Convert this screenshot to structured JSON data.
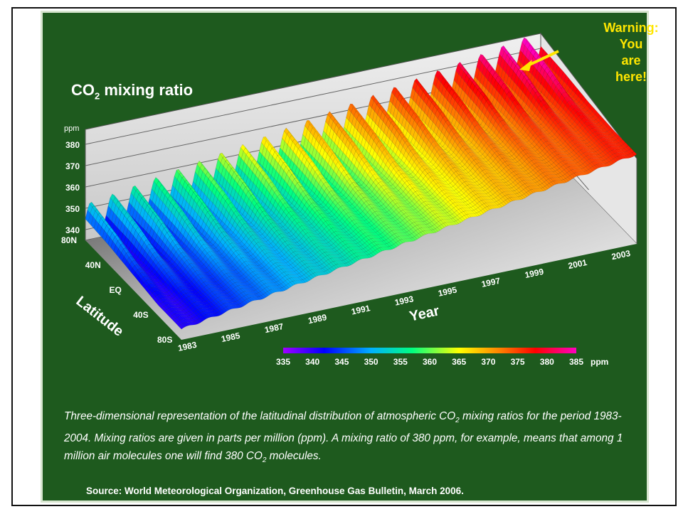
{
  "title_prefix": "CO",
  "title_sub": "2",
  "title_suffix": " mixing ratio",
  "warning_lines": [
    "Warning:",
    "You",
    "are",
    "here!"
  ],
  "caption": {
    "part1": "Three-dimensional representation of the latitudinal distribution of atmospheric CO",
    "sub1": "2",
    "part2": " mixing ratios for the period 1983-2004. Mixing ratios are given in parts per million (ppm).  A mixing ratio of 380 ppm, for example, means that among 1 million air molecules one will find 380 CO",
    "sub2": "2",
    "part3": " molecules."
  },
  "source": "Source: World Meteorological Organization, Greenhouse Gas Bulletin, March 2006.",
  "chart_data": {
    "type": "surface",
    "zlabel": "ppm",
    "xlabel": "Year",
    "ylabel": "Latitude",
    "z_ticks": [
      "340",
      "350",
      "360",
      "370",
      "380"
    ],
    "zlim": [
      335,
      385
    ],
    "x_ticks": [
      "1983",
      "1985",
      "1987",
      "1989",
      "1991",
      "1993",
      "1995",
      "1997",
      "1999",
      "2001",
      "2003"
    ],
    "xlim": [
      1983,
      2004
    ],
    "lat_ticks": [
      "80N",
      "40N",
      "EQ",
      "40S",
      "80S"
    ],
    "colorbar_ticks": [
      "335",
      "340",
      "345",
      "350",
      "355",
      "360",
      "365",
      "370",
      "375",
      "380",
      "385"
    ],
    "colorbar_unit": "ppm",
    "colors": [
      "#a000ff",
      "#0000ff",
      "#00b0ff",
      "#00ff80",
      "#ffff00",
      "#ff8000",
      "#ff0000",
      "#ff00c0"
    ],
    "series": [
      {
        "latitude": "80N",
        "start": 345,
        "end": 381,
        "seasonal_amplitude": 7
      },
      {
        "latitude": "40N",
        "start": 344,
        "end": 380,
        "seasonal_amplitude": 5
      },
      {
        "latitude": "EQ",
        "start": 342,
        "end": 378,
        "seasonal_amplitude": 2
      },
      {
        "latitude": "40S",
        "start": 340,
        "end": 377,
        "seasonal_amplitude": 1
      },
      {
        "latitude": "80S",
        "start": 340,
        "end": 377,
        "seasonal_amplitude": 0.5
      }
    ]
  }
}
